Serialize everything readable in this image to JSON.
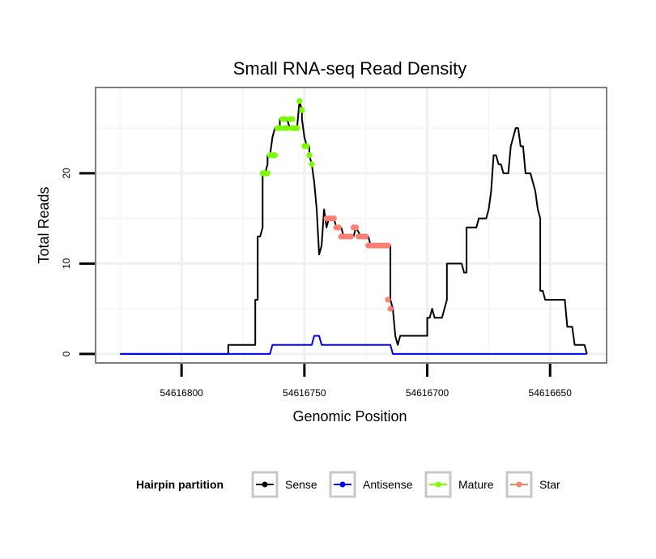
{
  "chart_data": {
    "type": "line",
    "title": "Small RNA-seq Read Density",
    "xlabel": "Genomic Position",
    "ylabel": "Total Reads",
    "xlim": [
      54616835,
      54616627
    ],
    "ylim": [
      -1,
      29.5
    ],
    "x_ticks": [
      54616800,
      54616750,
      54616700,
      54616650
    ],
    "x_tick_labels": [
      "54616800",
      "54616750",
      "54616700",
      "54616650"
    ],
    "y_ticks": [
      0,
      10,
      20
    ],
    "y_tick_labels": [
      "0",
      "10",
      "20"
    ],
    "grid": true,
    "legend": {
      "title": "Hairpin partition",
      "position": "bottom",
      "entries": [
        {
          "label": "Sense",
          "color": "#000000"
        },
        {
          "label": "Antisense",
          "color": "#0000ff"
        },
        {
          "label": "Mature",
          "color": "#7cfc00"
        },
        {
          "label": "Star",
          "color": "#fa8072"
        }
      ]
    },
    "series": [
      {
        "name": "Sense",
        "color": "#000000",
        "kind": "line",
        "points": [
          [
            54616825,
            0
          ],
          [
            54616781,
            0
          ],
          [
            54616781,
            1
          ],
          [
            54616770,
            1
          ],
          [
            54616770,
            6
          ],
          [
            54616769,
            6
          ],
          [
            54616769,
            13
          ],
          [
            54616768,
            13
          ],
          [
            54616767,
            14
          ],
          [
            54616767,
            20
          ],
          [
            54616766,
            20
          ],
          [
            54616765,
            21
          ],
          [
            54616765,
            22
          ],
          [
            54616764,
            22
          ],
          [
            54616763,
            24
          ],
          [
            54616762,
            25
          ],
          [
            54616760,
            25
          ],
          [
            54616760,
            26
          ],
          [
            54616757,
            26
          ],
          [
            54616756,
            25
          ],
          [
            54616753,
            25
          ],
          [
            54616752,
            28
          ],
          [
            54616751,
            27
          ],
          [
            54616751,
            26
          ],
          [
            54616750,
            24
          ],
          [
            54616749,
            23
          ],
          [
            54616748,
            23
          ],
          [
            54616748,
            22
          ],
          [
            54616747,
            21
          ],
          [
            54616746,
            19
          ],
          [
            54616745,
            16
          ],
          [
            54616744,
            11
          ],
          [
            54616743,
            12
          ],
          [
            54616742,
            16
          ],
          [
            54616741,
            14
          ],
          [
            54616740,
            15
          ],
          [
            54616738,
            15
          ],
          [
            54616737,
            14
          ],
          [
            54616735,
            14
          ],
          [
            54616734,
            13
          ],
          [
            54616730,
            13
          ],
          [
            54616729,
            14
          ],
          [
            54616727,
            13
          ],
          [
            54616724,
            13
          ],
          [
            54616723,
            12
          ],
          [
            54616715,
            12
          ],
          [
            54616715,
            6
          ],
          [
            54616714,
            5
          ],
          [
            54616713,
            2
          ],
          [
            54616712,
            1
          ],
          [
            54616711,
            2
          ],
          [
            54616700,
            2
          ],
          [
            54616700,
            4
          ],
          [
            54616699,
            4
          ],
          [
            54616698,
            5
          ],
          [
            54616697,
            4
          ],
          [
            54616694,
            4
          ],
          [
            54616693,
            5
          ],
          [
            54616692,
            6
          ],
          [
            54616692,
            10
          ],
          [
            54616686,
            10
          ],
          [
            54616685,
            9
          ],
          [
            54616684,
            9
          ],
          [
            54616684,
            14
          ],
          [
            54616680,
            14
          ],
          [
            54616679,
            15
          ],
          [
            54616676,
            15
          ],
          [
            54616675,
            16
          ],
          [
            54616674,
            18
          ],
          [
            54616673,
            22
          ],
          [
            54616672,
            22
          ],
          [
            54616671,
            21
          ],
          [
            54616670,
            21
          ],
          [
            54616669,
            20
          ],
          [
            54616667,
            20
          ],
          [
            54616666,
            23
          ],
          [
            54616665,
            24
          ],
          [
            54616664,
            25
          ],
          [
            54616663,
            25
          ],
          [
            54616662,
            23
          ],
          [
            54616661,
            23
          ],
          [
            54616660,
            20
          ],
          [
            54616658,
            20
          ],
          [
            54616657,
            19
          ],
          [
            54616656,
            18
          ],
          [
            54616655,
            16
          ],
          [
            54616654,
            15
          ],
          [
            54616654,
            7
          ],
          [
            54616653,
            7
          ],
          [
            54616652,
            6
          ],
          [
            54616644,
            6
          ],
          [
            54616643,
            3
          ],
          [
            54616641,
            3
          ],
          [
            54616640,
            1
          ],
          [
            54616636,
            1
          ],
          [
            54616635,
            0
          ]
        ]
      },
      {
        "name": "Antisense",
        "color": "#0000ff",
        "kind": "line",
        "points": [
          [
            54616825,
            0
          ],
          [
            54616764,
            0
          ],
          [
            54616763,
            1
          ],
          [
            54616747,
            1
          ],
          [
            54616746,
            2
          ],
          [
            54616744,
            2
          ],
          [
            54616743,
            1
          ],
          [
            54616715,
            1
          ],
          [
            54616714,
            0
          ],
          [
            54616635,
            0
          ]
        ]
      },
      {
        "name": "Mature",
        "color": "#7cfc00",
        "kind": "points",
        "points": [
          [
            54616767,
            20
          ],
          [
            54616766,
            20
          ],
          [
            54616765,
            20
          ],
          [
            54616764,
            22
          ],
          [
            54616763,
            22
          ],
          [
            54616762,
            22
          ],
          [
            54616761,
            25
          ],
          [
            54616760,
            25
          ],
          [
            54616759,
            26
          ],
          [
            54616758,
            25
          ],
          [
            54616758,
            26
          ],
          [
            54616757,
            25
          ],
          [
            54616756,
            26
          ],
          [
            54616755,
            26
          ],
          [
            54616755,
            25
          ],
          [
            54616754,
            25
          ],
          [
            54616753,
            25
          ],
          [
            54616752,
            28
          ],
          [
            54616751,
            27
          ],
          [
            54616750,
            23
          ],
          [
            54616749,
            23
          ],
          [
            54616748,
            22
          ],
          [
            54616747,
            21
          ]
        ]
      },
      {
        "name": "Star",
        "color": "#fa8072",
        "kind": "points",
        "points": [
          [
            54616741,
            15
          ],
          [
            54616740,
            15
          ],
          [
            54616739,
            15
          ],
          [
            54616738,
            15
          ],
          [
            54616737,
            14
          ],
          [
            54616736,
            14
          ],
          [
            54616735,
            13
          ],
          [
            54616734,
            13
          ],
          [
            54616733,
            13
          ],
          [
            54616732,
            13
          ],
          [
            54616731,
            13
          ],
          [
            54616730,
            14
          ],
          [
            54616729,
            14
          ],
          [
            54616728,
            13
          ],
          [
            54616727,
            13
          ],
          [
            54616726,
            13
          ],
          [
            54616725,
            13
          ],
          [
            54616724,
            12
          ],
          [
            54616723,
            12
          ],
          [
            54616722,
            12
          ],
          [
            54616721,
            12
          ],
          [
            54616720,
            12
          ],
          [
            54616719,
            12
          ],
          [
            54616718,
            12
          ],
          [
            54616717,
            12
          ],
          [
            54616716,
            12
          ],
          [
            54616716,
            6
          ],
          [
            54616715,
            5
          ]
        ]
      }
    ]
  }
}
